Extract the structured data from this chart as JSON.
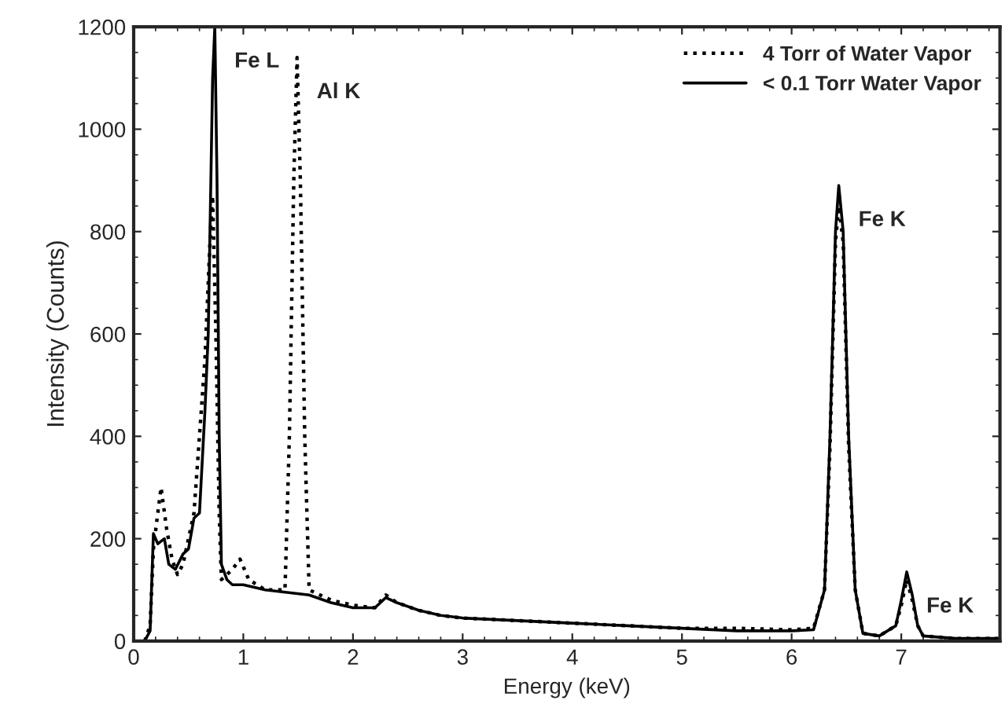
{
  "chart_data": {
    "type": "line",
    "xlabel": "Energy (keV)",
    "ylabel": "Intensity (Counts)",
    "xlim": [
      0,
      7.9
    ],
    "ylim": [
      0,
      1200
    ],
    "xticks": [
      0,
      1,
      2,
      3,
      4,
      5,
      6,
      7
    ],
    "yticks": [
      0,
      200,
      400,
      600,
      800,
      1000,
      1200
    ],
    "grid": false,
    "legend": "top right",
    "marker": "none",
    "series": [
      {
        "name": "4 Torr of Water Vapor",
        "color": "#000000",
        "line_style": "dotted",
        "x": [
          0.1,
          0.15,
          0.18,
          0.22,
          0.25,
          0.3,
          0.35,
          0.4,
          0.45,
          0.5,
          0.55,
          0.6,
          0.65,
          0.7,
          0.72,
          0.75,
          0.78,
          0.8,
          0.9,
          0.97,
          1.05,
          1.2,
          1.38,
          1.42,
          1.46,
          1.49,
          1.52,
          1.56,
          1.6,
          1.8,
          2.0,
          2.2,
          2.3,
          2.4,
          2.6,
          2.8,
          3.0,
          3.5,
          4.0,
          4.5,
          5.0,
          5.5,
          6.0,
          6.2,
          6.3,
          6.35,
          6.4,
          6.43,
          6.47,
          6.52,
          6.58,
          6.65,
          6.8,
          6.95,
          7.0,
          7.05,
          7.1,
          7.15,
          7.2,
          7.5,
          7.9
        ],
        "values": [
          0,
          30,
          180,
          250,
          300,
          220,
          160,
          130,
          150,
          200,
          250,
          400,
          550,
          800,
          870,
          600,
          250,
          120,
          140,
          160,
          120,
          100,
          100,
          400,
          900,
          1140,
          900,
          400,
          100,
          80,
          70,
          65,
          90,
          75,
          60,
          50,
          45,
          40,
          35,
          30,
          25,
          25,
          22,
          25,
          100,
          380,
          780,
          850,
          780,
          380,
          100,
          15,
          10,
          30,
          70,
          120,
          80,
          30,
          10,
          5,
          5
        ]
      },
      {
        "name": "< 0.1 Torr Water Vapor",
        "color": "#000000",
        "line_style": "solid",
        "x": [
          0.1,
          0.15,
          0.18,
          0.22,
          0.28,
          0.32,
          0.38,
          0.45,
          0.5,
          0.55,
          0.6,
          0.65,
          0.68,
          0.7,
          0.72,
          0.74,
          0.76,
          0.78,
          0.8,
          0.85,
          0.9,
          1.0,
          1.2,
          1.4,
          1.6,
          1.8,
          2.0,
          2.2,
          2.3,
          2.4,
          2.6,
          2.8,
          3.0,
          3.5,
          4.0,
          4.5,
          5.0,
          5.5,
          6.0,
          6.2,
          6.3,
          6.35,
          6.4,
          6.43,
          6.47,
          6.52,
          6.58,
          6.65,
          6.8,
          6.95,
          7.0,
          7.05,
          7.1,
          7.15,
          7.2,
          7.5,
          7.9
        ],
        "values": [
          0,
          20,
          210,
          190,
          200,
          150,
          140,
          170,
          180,
          240,
          250,
          450,
          600,
          850,
          1100,
          1200,
          900,
          400,
          150,
          120,
          110,
          110,
          100,
          95,
          90,
          75,
          65,
          65,
          85,
          75,
          60,
          50,
          45,
          40,
          35,
          30,
          25,
          20,
          20,
          22,
          100,
          400,
          800,
          890,
          800,
          400,
          100,
          15,
          10,
          30,
          80,
          135,
          90,
          30,
          10,
          5,
          5
        ]
      }
    ],
    "annotations": [
      {
        "text": "Fe L",
        "x": 0.74,
        "y": 1200
      },
      {
        "text": "Al K",
        "x": 1.49,
        "y": 1140
      },
      {
        "text": "Fe K",
        "x": 6.43,
        "y": 890
      },
      {
        "text": "Fe K",
        "x": 7.05,
        "y": 135
      }
    ]
  }
}
